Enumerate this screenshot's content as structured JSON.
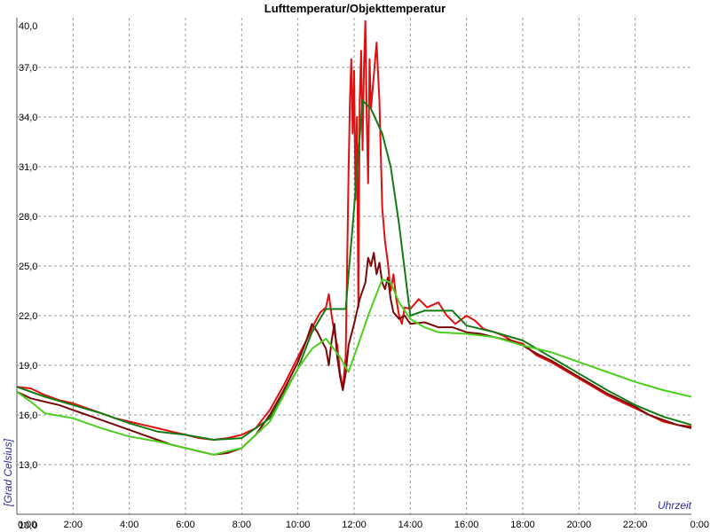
{
  "chart_data": {
    "type": "line",
    "title": "Lufttemperatur/Objekttemperatur",
    "xlabel": "Uhrzeit",
    "ylabel": "[Grad Celsius]",
    "xlim": [
      0,
      24
    ],
    "ylim": [
      10,
      40
    ],
    "grid": true,
    "x_tick_labels": [
      "0:00",
      "2:00",
      "4:00",
      "6:00",
      "8:00",
      "10:00",
      "12:00",
      "14:00",
      "16:00",
      "18:00",
      "20:00",
      "22:00",
      "0:00"
    ],
    "y_tick_labels": [
      "10,0",
      "13,0",
      "16,0",
      "19,0",
      "22,0",
      "25,0",
      "28,0",
      "31,0",
      "34,0",
      "37,0",
      "40,0"
    ],
    "series": [
      {
        "color": "#e01010",
        "values": [
          [
            0,
            17.7
          ],
          [
            0.5,
            17.6
          ],
          [
            1,
            17.2
          ],
          [
            1.5,
            16.9
          ],
          [
            2,
            16.7
          ],
          [
            2.5,
            16.4
          ],
          [
            3,
            16.1
          ],
          [
            3.5,
            15.8
          ],
          [
            4,
            15.6
          ],
          [
            4.5,
            15.4
          ],
          [
            5,
            15.2
          ],
          [
            5.5,
            15.0
          ],
          [
            6,
            14.8
          ],
          [
            6.5,
            14.6
          ],
          [
            7,
            14.5
          ],
          [
            7.5,
            14.6
          ],
          [
            8,
            14.8
          ],
          [
            8.5,
            15.2
          ],
          [
            9,
            16.3
          ],
          [
            9.5,
            17.8
          ],
          [
            10,
            19.5
          ],
          [
            10.3,
            20.5
          ],
          [
            10.6,
            21.6
          ],
          [
            10.8,
            22.2
          ],
          [
            11,
            22.5
          ],
          [
            11.1,
            23.3
          ],
          [
            11.2,
            22.0
          ],
          [
            11.3,
            21.0
          ],
          [
            11.4,
            20.2
          ],
          [
            11.5,
            18.5
          ],
          [
            11.6,
            17.6
          ],
          [
            11.7,
            19.5
          ],
          [
            11.8,
            30.5
          ],
          [
            11.85,
            35.0
          ],
          [
            11.9,
            37.5
          ],
          [
            11.95,
            33.0
          ],
          [
            12.0,
            36.8
          ],
          [
            12.05,
            29.0
          ],
          [
            12.1,
            34.0
          ],
          [
            12.15,
            22.5
          ],
          [
            12.2,
            35.0
          ],
          [
            12.25,
            38.0
          ],
          [
            12.3,
            32.0
          ],
          [
            12.35,
            37.0
          ],
          [
            12.4,
            39.8
          ],
          [
            12.45,
            34.0
          ],
          [
            12.5,
            30.0
          ],
          [
            12.55,
            37.5
          ],
          [
            12.6,
            34.5
          ],
          [
            12.7,
            36.5
          ],
          [
            12.8,
            38.5
          ],
          [
            12.9,
            35.0
          ],
          [
            13.0,
            28.5
          ],
          [
            13.1,
            26.5
          ],
          [
            13.2,
            25.2
          ],
          [
            13.3,
            23.5
          ],
          [
            13.4,
            24.5
          ],
          [
            13.5,
            23.0
          ],
          [
            13.6,
            22.0
          ],
          [
            13.7,
            21.5
          ],
          [
            13.8,
            22.5
          ],
          [
            14,
            22.4
          ],
          [
            14.3,
            23.0
          ],
          [
            14.6,
            22.5
          ],
          [
            15,
            22.8
          ],
          [
            15.3,
            22.0
          ],
          [
            15.6,
            21.5
          ],
          [
            16,
            22.0
          ],
          [
            16.3,
            21.7
          ],
          [
            16.6,
            21.2
          ],
          [
            17,
            21.0
          ],
          [
            17.3,
            20.8
          ],
          [
            17.6,
            20.5
          ],
          [
            18,
            20.3
          ],
          [
            18.5,
            19.6
          ],
          [
            19,
            19.2
          ],
          [
            19.5,
            18.7
          ],
          [
            20,
            18.2
          ],
          [
            20.5,
            17.7
          ],
          [
            21,
            17.2
          ],
          [
            21.5,
            16.8
          ],
          [
            22,
            16.4
          ],
          [
            22.5,
            16.0
          ],
          [
            23,
            15.6
          ],
          [
            23.5,
            15.4
          ],
          [
            24,
            15.3
          ]
        ]
      },
      {
        "color": "#7a0a0a",
        "values": [
          [
            0,
            17.4
          ],
          [
            0.5,
            17.0
          ],
          [
            1,
            16.8
          ],
          [
            1.5,
            16.6
          ],
          [
            2,
            16.3
          ],
          [
            2.5,
            16.0
          ],
          [
            3,
            15.7
          ],
          [
            3.5,
            15.4
          ],
          [
            4,
            15.1
          ],
          [
            4.5,
            14.8
          ],
          [
            5,
            14.5
          ],
          [
            5.5,
            14.2
          ],
          [
            6,
            14.0
          ],
          [
            6.5,
            13.8
          ],
          [
            7,
            13.6
          ],
          [
            7.5,
            13.7
          ],
          [
            8,
            14.0
          ],
          [
            8.5,
            14.8
          ],
          [
            9,
            16.0
          ],
          [
            9.5,
            17.5
          ],
          [
            10,
            19.2
          ],
          [
            10.3,
            20.5
          ],
          [
            10.5,
            21.5
          ],
          [
            10.7,
            21.0
          ],
          [
            10.9,
            20.3
          ],
          [
            11,
            20.0
          ],
          [
            11.1,
            19.0
          ],
          [
            11.2,
            20.5
          ],
          [
            11.3,
            21.5
          ],
          [
            11.4,
            19.5
          ],
          [
            11.5,
            18.3
          ],
          [
            11.6,
            17.5
          ],
          [
            11.7,
            18.5
          ],
          [
            11.8,
            20.2
          ],
          [
            12.0,
            21.5
          ],
          [
            12.2,
            23.0
          ],
          [
            12.4,
            24.0
          ],
          [
            12.5,
            25.5
          ],
          [
            12.6,
            25.0
          ],
          [
            12.7,
            25.8
          ],
          [
            12.8,
            24.5
          ],
          [
            12.9,
            25.2
          ],
          [
            13.0,
            24.0
          ],
          [
            13.1,
            23.6
          ],
          [
            13.2,
            24.3
          ],
          [
            13.3,
            23.0
          ],
          [
            13.4,
            22.2
          ],
          [
            13.6,
            21.8
          ],
          [
            13.8,
            22.0
          ],
          [
            14,
            21.5
          ],
          [
            14.5,
            21.6
          ],
          [
            15,
            21.3
          ],
          [
            15.5,
            21.3
          ],
          [
            16,
            21.0
          ],
          [
            16.5,
            20.9
          ],
          [
            17,
            20.7
          ],
          [
            17.5,
            20.5
          ],
          [
            18,
            20.2
          ],
          [
            18.5,
            19.7
          ],
          [
            19,
            19.3
          ],
          [
            19.5,
            18.8
          ],
          [
            20,
            18.3
          ],
          [
            20.5,
            17.8
          ],
          [
            21,
            17.3
          ],
          [
            21.5,
            16.9
          ],
          [
            22,
            16.5
          ],
          [
            22.5,
            16.0
          ],
          [
            23,
            15.7
          ],
          [
            23.5,
            15.4
          ],
          [
            24,
            15.2
          ]
        ]
      },
      {
        "color": "#157a15",
        "values": [
          [
            0,
            17.7
          ],
          [
            1,
            17.1
          ],
          [
            2,
            16.6
          ],
          [
            3,
            16.1
          ],
          [
            4,
            15.5
          ],
          [
            5,
            15.0
          ],
          [
            6,
            14.8
          ],
          [
            7,
            14.5
          ],
          [
            8,
            14.6
          ],
          [
            9,
            15.8
          ],
          [
            10,
            18.8
          ],
          [
            10.5,
            21.0
          ],
          [
            11,
            22.4
          ],
          [
            11.5,
            22.4
          ],
          [
            11.7,
            22.4
          ],
          [
            12.0,
            28.5
          ],
          [
            12.3,
            35.0
          ],
          [
            12.6,
            34.5
          ],
          [
            13.0,
            33.0
          ],
          [
            13.3,
            31.0
          ],
          [
            13.6,
            27.5
          ],
          [
            14.0,
            22.0
          ],
          [
            14.5,
            22.3
          ],
          [
            15,
            22.3
          ],
          [
            15.5,
            22.3
          ],
          [
            16,
            21.4
          ],
          [
            17,
            21.0
          ],
          [
            18,
            20.5
          ],
          [
            19,
            19.5
          ],
          [
            20,
            18.5
          ],
          [
            21,
            17.5
          ],
          [
            22,
            16.6
          ],
          [
            23,
            15.9
          ],
          [
            24,
            15.4
          ]
        ]
      },
      {
        "color": "#4ccf1e",
        "values": [
          [
            0,
            17.4
          ],
          [
            0.5,
            16.8
          ],
          [
            1,
            16.1
          ],
          [
            2,
            15.8
          ],
          [
            3,
            15.2
          ],
          [
            4,
            14.7
          ],
          [
            5,
            14.4
          ],
          [
            6,
            14.0
          ],
          [
            7,
            13.6
          ],
          [
            8,
            14.0
          ],
          [
            9,
            15.6
          ],
          [
            10,
            18.8
          ],
          [
            10.5,
            20.0
          ],
          [
            11,
            20.6
          ],
          [
            11.5,
            19.5
          ],
          [
            11.8,
            18.6
          ],
          [
            12.2,
            20.5
          ],
          [
            12.5,
            22.0
          ],
          [
            13.0,
            24.2
          ],
          [
            13.3,
            24.0
          ],
          [
            13.6,
            22.8
          ],
          [
            14,
            21.8
          ],
          [
            14.5,
            21.3
          ],
          [
            15,
            21.0
          ],
          [
            16,
            20.9
          ],
          [
            17,
            20.7
          ],
          [
            18,
            20.2
          ],
          [
            19,
            19.8
          ],
          [
            20,
            19.2
          ],
          [
            21,
            18.6
          ],
          [
            22,
            18.0
          ],
          [
            23,
            17.5
          ],
          [
            24,
            17.1
          ]
        ]
      }
    ]
  }
}
